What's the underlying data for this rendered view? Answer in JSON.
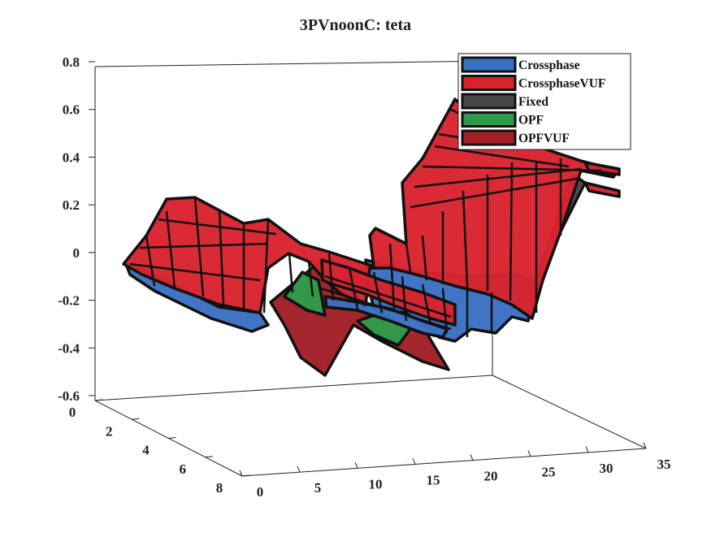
{
  "chart_data": {
    "type": "surface3d",
    "title": "3PVnoonC: teta",
    "xlabel": "",
    "ylabel": "",
    "zlabel": "",
    "x_ticks": [
      "0",
      "5",
      "10",
      "15",
      "20",
      "25",
      "30",
      "35"
    ],
    "y_ticks": [
      "0",
      "2",
      "4",
      "6",
      "8"
    ],
    "z_ticks": [
      "0.8",
      "0.6",
      "0.4",
      "0.2",
      "0",
      "-0.2",
      "-0.4",
      "-0.6"
    ],
    "xlim": [
      0,
      35
    ],
    "ylim": [
      0,
      8
    ],
    "zlim": [
      -0.6,
      0.8
    ],
    "legend_position": "top-right",
    "series": [
      {
        "name": "Crossphase",
        "color": "#3b6fc2"
      },
      {
        "name": "CrossphaseVUF",
        "color": "#d8232e"
      },
      {
        "name": "Fixed",
        "color": "#474747"
      },
      {
        "name": "OPF",
        "color": "#2e9b4a"
      },
      {
        "name": "OPFVUF",
        "color": "#a11f25"
      }
    ]
  }
}
